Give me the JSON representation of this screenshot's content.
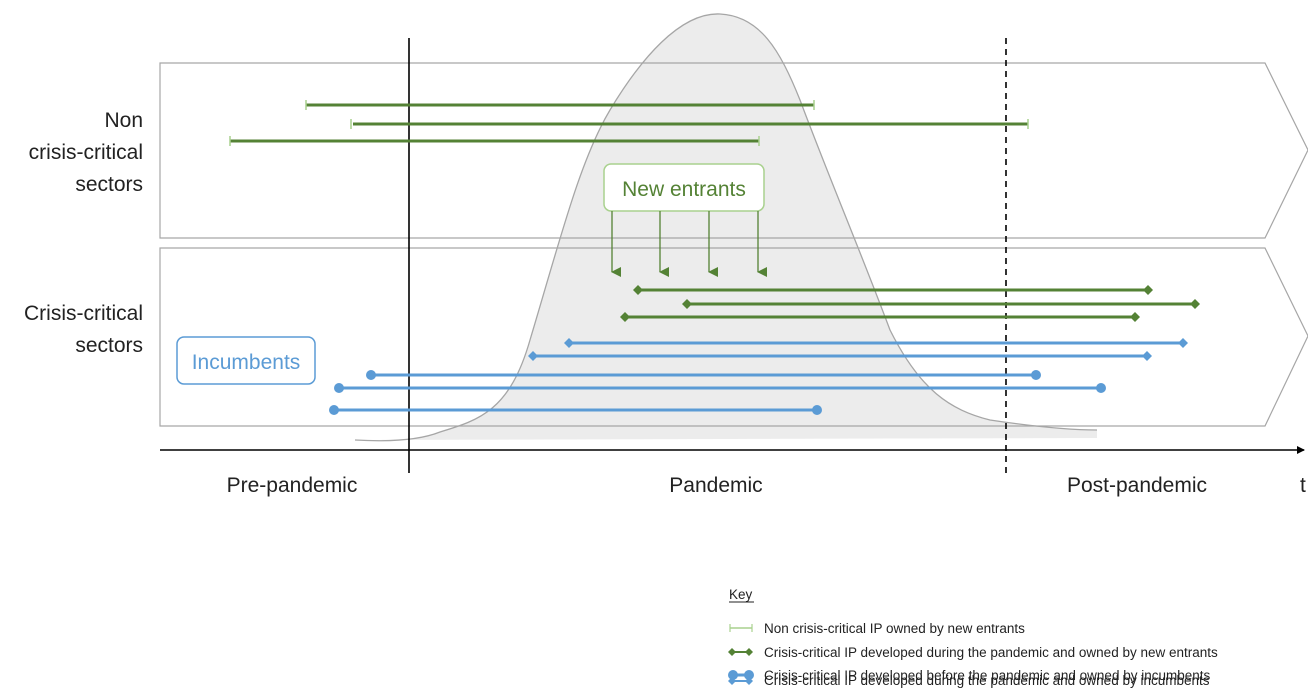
{
  "rows": {
    "non_critical": [
      "Non",
      "crisis-critical",
      "sectors"
    ],
    "critical": [
      "Crisis-critical",
      "sectors"
    ]
  },
  "boxes": {
    "new_entrants": "New entrants",
    "incumbents": "Incumbents"
  },
  "phases": {
    "pre": "Pre-pandemic",
    "during": "Pandemic",
    "post": "Post-pandemic",
    "axis": "t"
  },
  "key": {
    "title": "Key",
    "items": [
      "Non crisis-critical IP owned by new entrants",
      "Crisis-critical IP developed during the pandemic and owned by new entrants",
      "Crisis-critical IP developed before the pandemic and owned by incumbents",
      "Crisis-critical IP developed during the pandemic and owned by incumbents"
    ]
  },
  "colors": {
    "green": "#548235",
    "green_light": "#a9d18e",
    "blue": "#5b9bd5",
    "grey_fill": "#ececec",
    "grey_stroke": "#a6a6a6",
    "panel_stroke": "#a6a6a6",
    "axis": "#000000"
  }
}
